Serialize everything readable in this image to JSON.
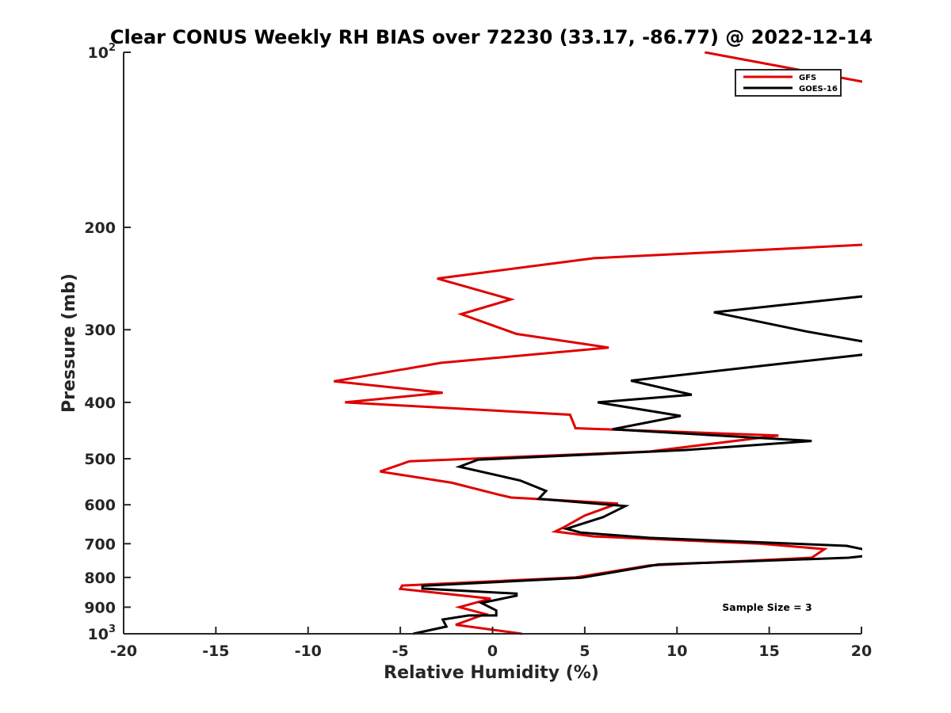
{
  "chart_data": {
    "type": "line",
    "title": "Clear CONUS Weekly RH BIAS over 72230 (33.17, -86.77) @ 2022-12-14",
    "xlabel": "Relative Humidity (%)",
    "ylabel": "Pressure (mb)",
    "xlim": [
      -20,
      20
    ],
    "ylim": [
      100,
      1000
    ],
    "y_scale": "log",
    "y_reversed": true,
    "grid": false,
    "legend_position": "top-right",
    "x_ticks": [
      -20,
      -15,
      -10,
      -5,
      0,
      5,
      10,
      15,
      20
    ],
    "x_tick_labels": [
      "-20",
      "-15",
      "-10",
      "-5",
      "0",
      "5",
      "10",
      "15",
      "20"
    ],
    "y_ticks": [
      {
        "value": 100,
        "base": "10",
        "exp": "2"
      },
      {
        "value": 200,
        "base": "200",
        "exp": ""
      },
      {
        "value": 300,
        "base": "300",
        "exp": ""
      },
      {
        "value": 400,
        "base": "400",
        "exp": ""
      },
      {
        "value": 500,
        "base": "500",
        "exp": ""
      },
      {
        "value": 600,
        "base": "600",
        "exp": ""
      },
      {
        "value": 700,
        "base": "700",
        "exp": ""
      },
      {
        "value": 800,
        "base": "800",
        "exp": ""
      },
      {
        "value": 900,
        "base": "900",
        "exp": ""
      },
      {
        "value": 1000,
        "base": "10",
        "exp": "3"
      }
    ],
    "annotation": "Sample Size = 3",
    "series": [
      {
        "name": "GFS",
        "color": "#e00000",
        "points": [
          [
            11.5,
            100
          ],
          [
            20.5,
            113
          ],
          [
            20.5,
            214
          ],
          [
            5.5,
            226
          ],
          [
            -3.0,
            245
          ],
          [
            1.0,
            266
          ],
          [
            -1.7,
            282
          ],
          [
            1.3,
            305
          ],
          [
            6.3,
            322
          ],
          [
            -2.8,
            342
          ],
          [
            -8.6,
            368
          ],
          [
            -2.7,
            385
          ],
          [
            -8.0,
            400
          ],
          [
            4.2,
            420
          ],
          [
            4.5,
            443
          ],
          [
            15.5,
            456
          ],
          [
            8.5,
            486
          ],
          [
            -4.5,
            505
          ],
          [
            -6.1,
            526
          ],
          [
            -2.2,
            550
          ],
          [
            0.3,
            576
          ],
          [
            1.0,
            583
          ],
          [
            6.8,
            597
          ],
          [
            5.0,
            626
          ],
          [
            3.9,
            655
          ],
          [
            3.4,
            667
          ],
          [
            5.5,
            680
          ],
          [
            14.5,
            700
          ],
          [
            18.0,
            715
          ],
          [
            17.3,
            740
          ],
          [
            8.5,
            763
          ],
          [
            4.5,
            800
          ],
          [
            -4.9,
            826
          ],
          [
            -5.0,
            837
          ],
          [
            -0.1,
            870
          ],
          [
            -1.8,
            900
          ],
          [
            -0.4,
            925
          ],
          [
            -2.0,
            965
          ],
          [
            1.6,
            1000
          ]
        ]
      },
      {
        "name": "GOES-16",
        "color": "#000000",
        "points": [
          [
            20.5,
            262
          ],
          [
            12.0,
            280
          ],
          [
            17.0,
            302
          ],
          [
            20.5,
            316
          ],
          [
            20.5,
            330
          ],
          [
            15.0,
            345
          ],
          [
            7.5,
            367
          ],
          [
            10.8,
            388
          ],
          [
            5.7,
            400
          ],
          [
            10.2,
            422
          ],
          [
            6.5,
            445
          ],
          [
            17.3,
            466
          ],
          [
            10.5,
            483
          ],
          [
            -0.8,
            502
          ],
          [
            -1.8,
            516
          ],
          [
            1.5,
            545
          ],
          [
            2.9,
            568
          ],
          [
            2.5,
            586
          ],
          [
            7.2,
            603
          ],
          [
            6.0,
            630
          ],
          [
            4.0,
            660
          ],
          [
            4.8,
            670
          ],
          [
            8.5,
            684
          ],
          [
            19.2,
            706
          ],
          [
            20.5,
            720
          ],
          [
            20.5,
            733
          ],
          [
            19.3,
            740
          ],
          [
            9.0,
            760
          ],
          [
            4.8,
            801
          ],
          [
            -3.8,
            827
          ],
          [
            -3.8,
            836
          ],
          [
            1.3,
            853
          ],
          [
            1.3,
            860
          ],
          [
            -0.6,
            885
          ],
          [
            0.2,
            912
          ],
          [
            0.2,
            930
          ],
          [
            -1.3,
            930
          ],
          [
            -2.7,
            945
          ],
          [
            -2.5,
            972
          ],
          [
            -4.3,
            1000
          ]
        ]
      }
    ]
  }
}
